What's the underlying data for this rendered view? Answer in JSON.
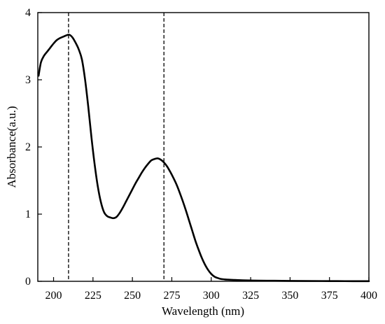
{
  "chart_data": {
    "type": "line",
    "xlabel": "Wavelength (nm)",
    "ylabel": "Absorbance(a.u.)",
    "xlim": [
      190,
      400
    ],
    "ylim": [
      0,
      4
    ],
    "x_ticks": [
      200,
      225,
      250,
      275,
      300,
      325,
      350,
      375,
      400
    ],
    "y_ticks": [
      0,
      1,
      2,
      3,
      4
    ],
    "x_tick_labels": [
      "200",
      "225",
      "250",
      "275",
      "300",
      "325",
      "350",
      "375",
      "400"
    ],
    "y_tick_labels": [
      "0",
      "1",
      "2",
      "3",
      "4"
    ],
    "grid": false,
    "reference_lines_x": [
      209.5,
      270
    ],
    "series": [
      {
        "color": "#000000",
        "x": [
          190.5,
          192,
          194,
          196,
          198,
          200,
          202,
          204,
          206,
          208,
          210,
          212,
          214,
          216,
          218,
          220,
          222,
          224,
          226,
          228,
          230,
          232,
          234,
          236,
          238,
          240,
          242,
          244,
          246,
          248,
          250,
          252,
          254,
          256,
          258,
          260,
          262,
          264,
          266,
          268,
          270,
          272,
          274,
          276,
          278,
          280,
          282,
          284,
          286,
          288,
          290,
          292,
          294,
          296,
          298,
          300,
          302,
          304,
          306,
          308,
          310,
          315,
          320,
          325,
          330,
          340,
          350,
          360,
          370,
          380,
          390,
          400
        ],
        "y": [
          3.06,
          3.26,
          3.36,
          3.42,
          3.48,
          3.54,
          3.59,
          3.62,
          3.64,
          3.66,
          3.67,
          3.63,
          3.55,
          3.45,
          3.3,
          3.0,
          2.6,
          2.15,
          1.75,
          1.42,
          1.18,
          1.03,
          0.97,
          0.95,
          0.94,
          0.96,
          1.02,
          1.1,
          1.19,
          1.28,
          1.37,
          1.46,
          1.54,
          1.62,
          1.69,
          1.75,
          1.8,
          1.82,
          1.83,
          1.81,
          1.77,
          1.71,
          1.63,
          1.54,
          1.44,
          1.32,
          1.19,
          1.05,
          0.9,
          0.75,
          0.6,
          0.47,
          0.35,
          0.25,
          0.17,
          0.11,
          0.07,
          0.05,
          0.035,
          0.03,
          0.025,
          0.02,
          0.015,
          0.012,
          0.01,
          0.008,
          0.006,
          0.005,
          0.004,
          0.003,
          0.002,
          0.002
        ]
      }
    ]
  }
}
